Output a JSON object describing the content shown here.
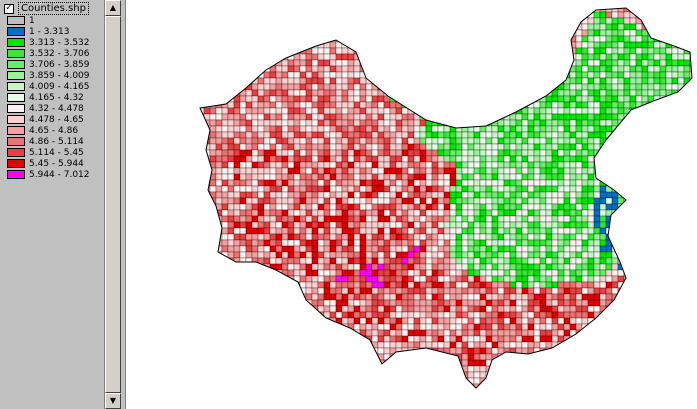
{
  "layer": {
    "name": "Counties.shp",
    "visible": true,
    "check_mark": "✓"
  },
  "legend": [
    {
      "label": "1",
      "color": "#c0c0c0"
    },
    {
      "label": "1 - 3.313",
      "color": "#0070c0"
    },
    {
      "label": "3.313 - 3.532",
      "color": "#00e600"
    },
    {
      "label": "3.532 - 3.706",
      "color": "#33ea33"
    },
    {
      "label": "3.706 - 3.859",
      "color": "#66ee66"
    },
    {
      "label": "3.859 - 4.009",
      "color": "#99f299"
    },
    {
      "label": "4.009 - 4.165",
      "color": "#c4f7c4"
    },
    {
      "label": "4.165 - 4.32",
      "color": "#e8fbe8"
    },
    {
      "label": "4.32 - 4.478",
      "color": "#fff0f0"
    },
    {
      "label": "4.478 - 4.65",
      "color": "#fdd0d0"
    },
    {
      "label": "4.65 - 4.86",
      "color": "#f5a0a0"
    },
    {
      "label": "4.86 - 5.114",
      "color": "#ef7070"
    },
    {
      "label": "5.114 - 5.45",
      "color": "#e84040"
    },
    {
      "label": "5.45 - 5.944",
      "color": "#e00000"
    },
    {
      "label": "5.944 - 7.012",
      "color": "#ff00ff"
    }
  ],
  "map": {
    "outline_color": "#000000",
    "background": "#ffffff"
  },
  "scrollbar": {
    "up_icon": "▲",
    "down_icon": "▼"
  }
}
